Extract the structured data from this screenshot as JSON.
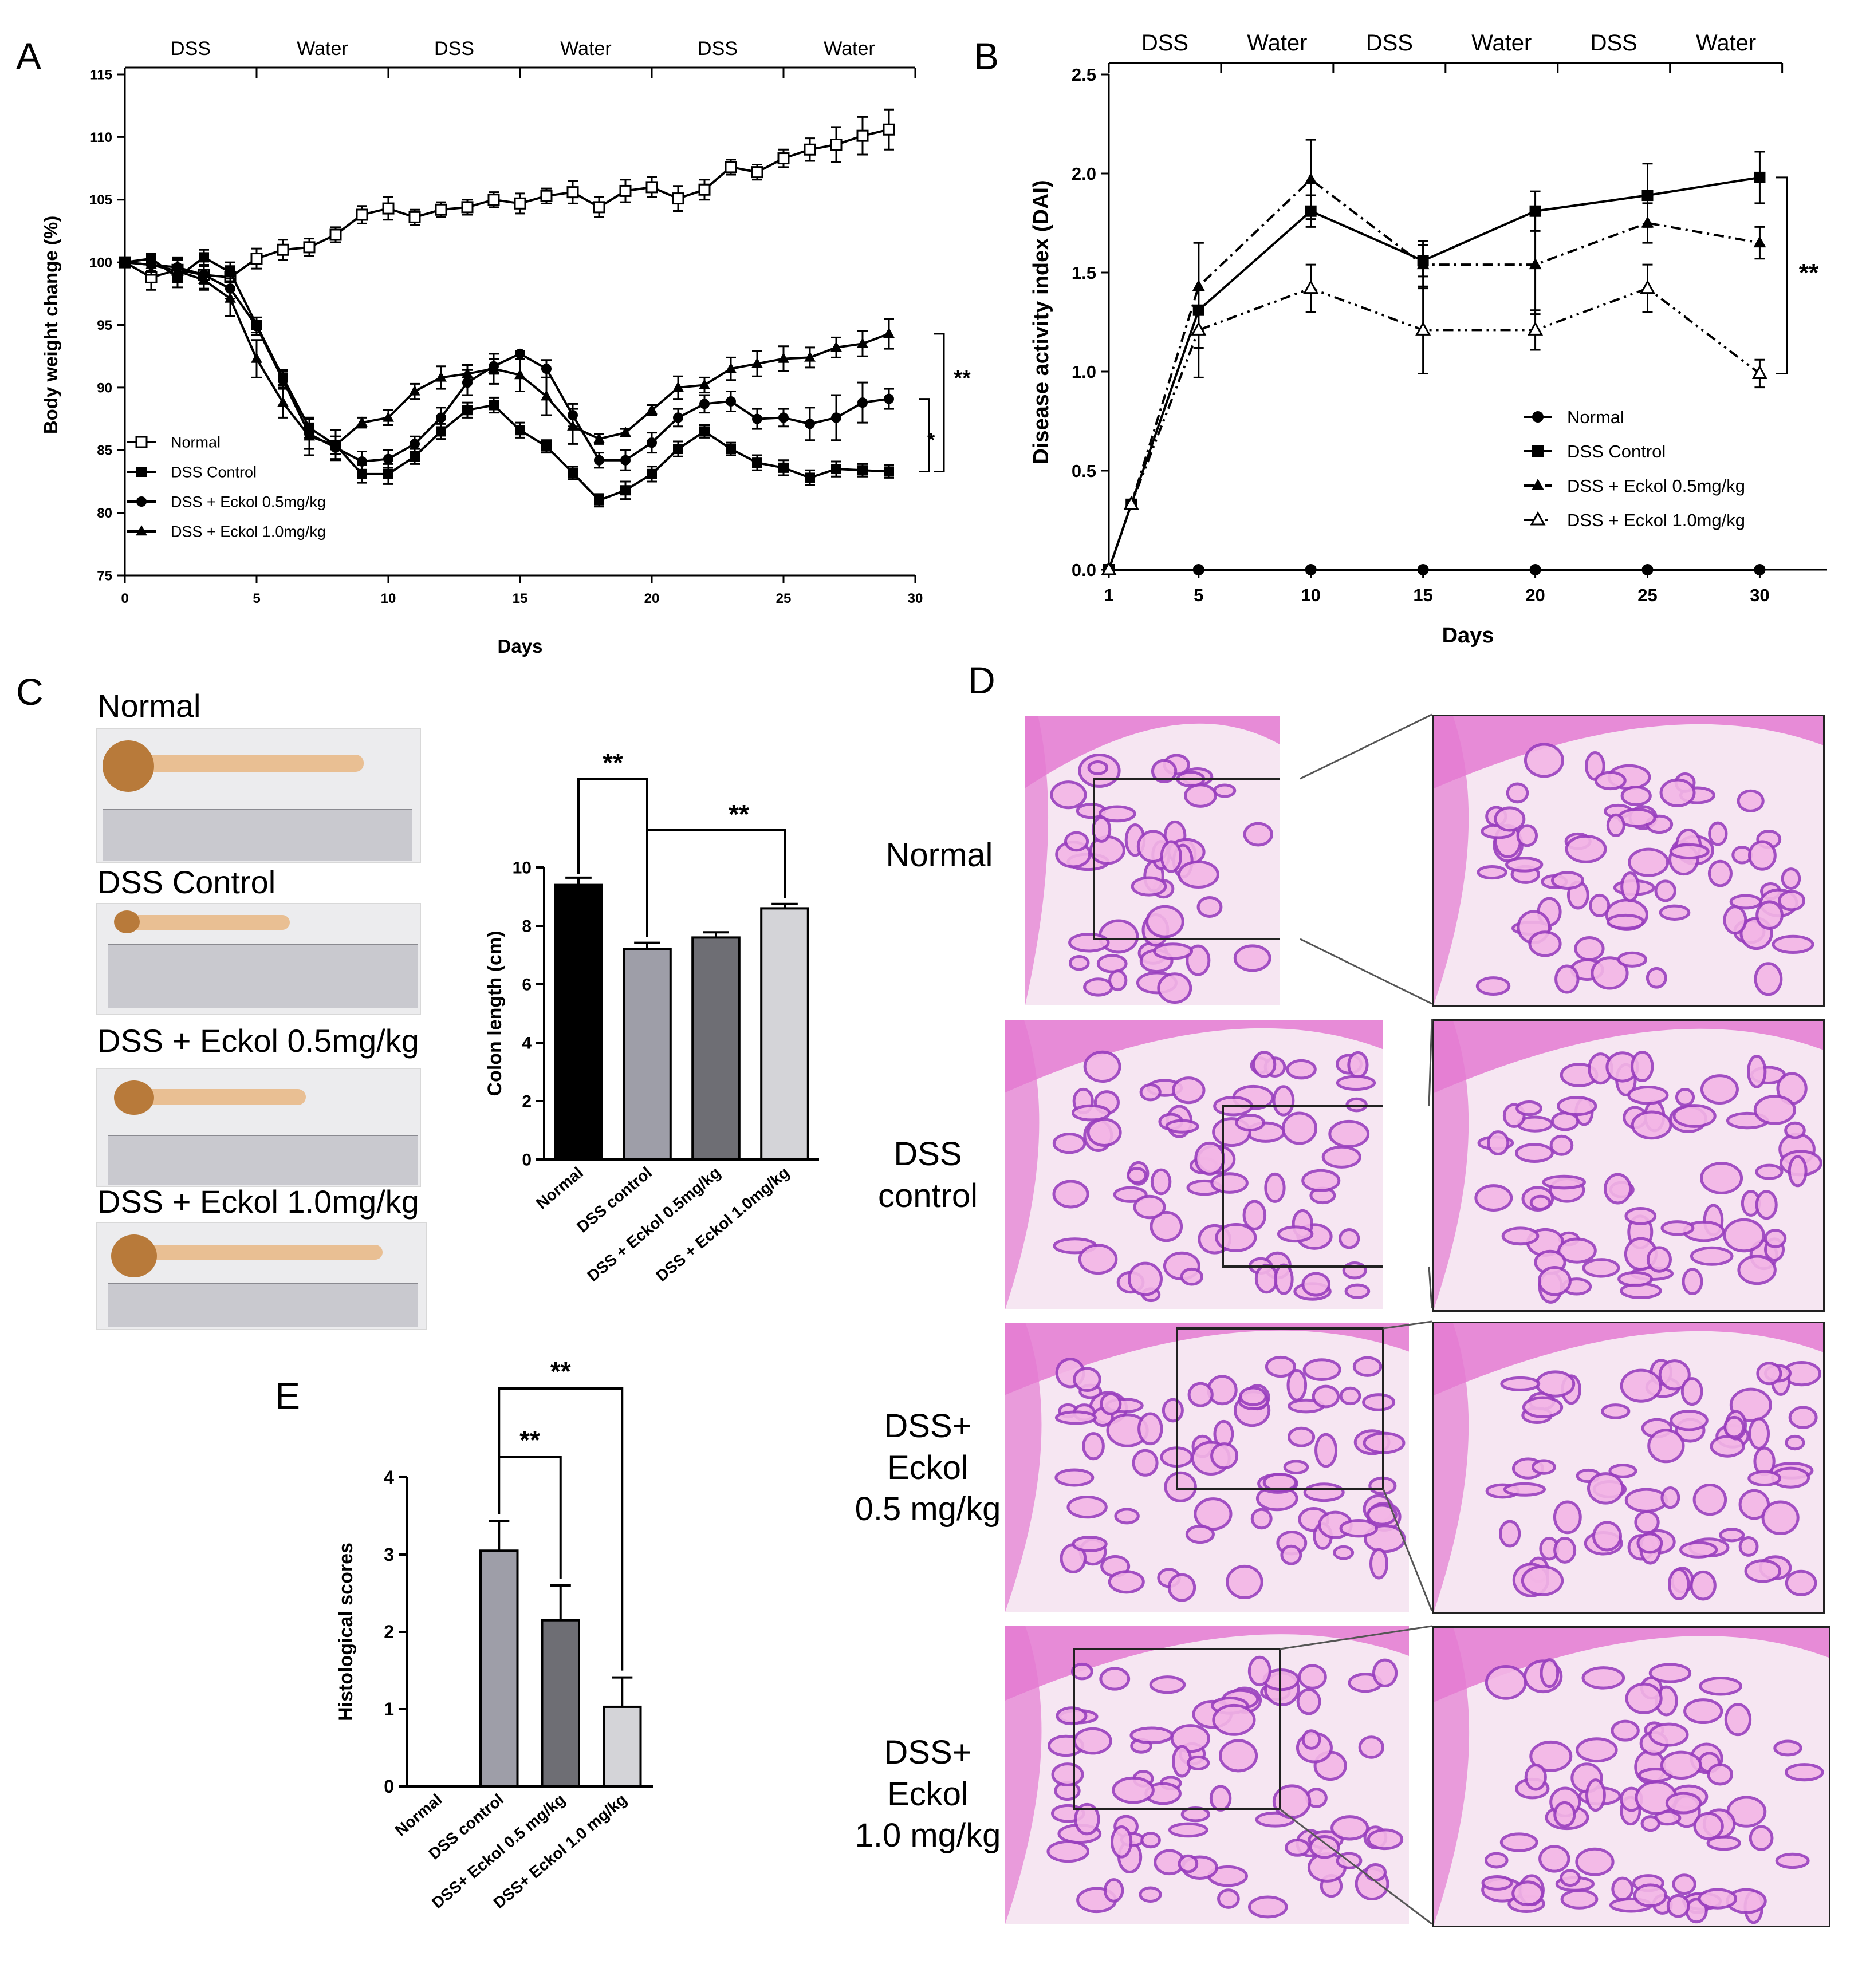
{
  "panels": {
    "A": "A",
    "B": "B",
    "C": "C",
    "D": "D",
    "E": "E"
  },
  "chart_data": [
    {
      "id": "A",
      "type": "line",
      "xlabel": "Days",
      "ylabel": "Body weight change (%)",
      "xlim": [
        0,
        30
      ],
      "ylim": [
        75,
        115
      ],
      "xticks": [
        "0",
        "5",
        "10",
        "15",
        "20",
        "25",
        "30"
      ],
      "yticks": [
        "75",
        "80",
        "85",
        "90",
        "95",
        "100",
        "105",
        "110",
        "115"
      ],
      "phases": [
        "DSS",
        "Water",
        "DSS",
        "Water",
        "DSS",
        "Water"
      ],
      "phase_bounds": [
        0,
        5,
        10,
        15,
        20,
        25,
        30
      ],
      "legend": "bottom-left",
      "series": [
        {
          "name": "Normal",
          "marker": "open-square",
          "x": [
            0,
            1,
            2,
            3,
            4,
            5,
            6,
            7,
            8,
            9,
            10,
            11,
            12,
            13,
            14,
            15,
            16,
            17,
            18,
            19,
            20,
            21,
            22,
            23,
            24,
            25,
            26,
            27,
            28,
            29
          ],
          "y": [
            100,
            98.8,
            99.4,
            99,
            98.8,
            100.3,
            101,
            101.2,
            102.2,
            103.8,
            104.3,
            103.6,
            104.2,
            104.4,
            105,
            104.7,
            105.3,
            105.6,
            104.4,
            105.7,
            106,
            105.1,
            105.8,
            107.6,
            107.2,
            108.3,
            109,
            109.4,
            110.1,
            110.6
          ],
          "err": [
            0.3,
            1,
            1,
            1.1,
            0.9,
            0.8,
            0.8,
            0.7,
            0.6,
            0.7,
            0.9,
            0.6,
            0.6,
            0.6,
            0.6,
            0.8,
            0.6,
            0.9,
            0.8,
            0.9,
            0.8,
            1,
            0.8,
            0.6,
            0.6,
            0.7,
            0.9,
            1.4,
            1.5,
            1.6
          ]
        },
        {
          "name": "DSS Control",
          "marker": "filled-square",
          "x": [
            0,
            1,
            2,
            3,
            4,
            5,
            6,
            7,
            8,
            9,
            10,
            11,
            12,
            13,
            14,
            15,
            16,
            17,
            18,
            19,
            20,
            21,
            22,
            23,
            24,
            25,
            26,
            27,
            28,
            29
          ],
          "y": [
            100,
            100.3,
            98.8,
            100.4,
            99.2,
            95,
            90.8,
            86.8,
            85.4,
            83.1,
            83.1,
            84.5,
            86.5,
            88.2,
            88.6,
            86.6,
            85.3,
            83.2,
            81,
            81.8,
            83.1,
            85.1,
            86.5,
            85.1,
            84,
            83.6,
            82.8,
            83.5,
            83.4,
            83.3
          ],
          "err": [
            0.2,
            0.4,
            0.8,
            0.6,
            0.8,
            0.6,
            0.6,
            0.8,
            0.7,
            0.7,
            0.8,
            0.6,
            0.6,
            0.6,
            0.6,
            0.6,
            0.5,
            0.5,
            0.5,
            0.7,
            0.6,
            0.6,
            0.5,
            0.5,
            0.6,
            0.6,
            0.6,
            0.6,
            0.5,
            0.5
          ]
        },
        {
          "name": "DSS + Eckol 0.5mg/kg",
          "marker": "filled-circle",
          "x": [
            0,
            1,
            2,
            3,
            4,
            5,
            6,
            7,
            8,
            9,
            10,
            11,
            12,
            13,
            14,
            15,
            16,
            17,
            18,
            19,
            20,
            21,
            22,
            23,
            24,
            25,
            26,
            27,
            28,
            29
          ],
          "y": [
            100,
            99.8,
            99.6,
            99,
            97.9,
            94.9,
            90.6,
            86.3,
            85.2,
            84.1,
            84.3,
            85.5,
            87.6,
            90.4,
            91.7,
            92.7,
            91.5,
            87.8,
            84.2,
            84.2,
            85.6,
            87.6,
            88.7,
            88.9,
            87.5,
            87.6,
            87.1,
            87.6,
            88.8,
            89.1
          ],
          "err": [
            0.2,
            0.5,
            0.7,
            0.7,
            0.8,
            0.7,
            0.7,
            1.2,
            0.9,
            0.8,
            0.7,
            0.6,
            0.8,
            1,
            0.6,
            0.2,
            0.7,
            0.9,
            0.6,
            0.8,
            0.8,
            0.7,
            0.7,
            0.8,
            0.8,
            0.7,
            1.3,
            1.8,
            1.6,
            0.8
          ]
        },
        {
          "name": "DSS + Eckol 1.0mg/kg",
          "marker": "filled-triangle",
          "x": [
            0,
            1,
            2,
            3,
            4,
            5,
            6,
            7,
            8,
            9,
            10,
            11,
            12,
            13,
            14,
            15,
            16,
            17,
            18,
            19,
            20,
            21,
            22,
            23,
            24,
            25,
            26,
            27,
            28,
            29
          ],
          "y": [
            100,
            99.8,
            99.3,
            98.6,
            97.1,
            92.3,
            88.8,
            86.1,
            85.4,
            87.2,
            87.6,
            89.7,
            90.8,
            91.1,
            91.5,
            91,
            89.3,
            86.9,
            85.9,
            86.4,
            88.2,
            90,
            90.2,
            91.5,
            91.9,
            92.3,
            92.4,
            93.2,
            93.5,
            94.3
          ],
          "err": [
            0.2,
            0.8,
            0.9,
            0.8,
            1.4,
            1.5,
            1.2,
            1.5,
            1.2,
            0.4,
            0.6,
            0.6,
            0.9,
            0.7,
            1.2,
            1.3,
            1.5,
            1.4,
            0.4,
            0.3,
            0.4,
            0.9,
            0.6,
            0.9,
            1,
            1,
            0.8,
            0.8,
            1,
            1.2
          ]
        }
      ],
      "significance": [
        {
          "label": "**",
          "from_series": "DSS + Eckol 1.0mg/kg",
          "to_series": "DSS Control"
        },
        {
          "label": "*",
          "from_series": "DSS + Eckol 0.5mg/kg",
          "to_series": "DSS Control"
        }
      ]
    },
    {
      "id": "B",
      "type": "line",
      "xlabel": "Days",
      "ylabel": "Disease activity index (DAI)",
      "xlim": [
        1,
        33
      ],
      "ylim": [
        0,
        2.5
      ],
      "xticks": [
        "1",
        "5",
        "10",
        "15",
        "20",
        "25",
        "30"
      ],
      "yticks": [
        "0.0",
        "0.5",
        "1.0",
        "1.5",
        "2.0",
        "2.5"
      ],
      "phases": [
        "DSS",
        "Water",
        "DSS",
        "Water",
        "DSS",
        "Water"
      ],
      "phase_bounds": [
        1,
        6,
        11,
        16,
        21,
        26,
        31
      ],
      "legend": "bottom-right",
      "series": [
        {
          "name": "Normal",
          "marker": "filled-circle",
          "style": "solid",
          "x": [
            1,
            5,
            10,
            15,
            20,
            25,
            30
          ],
          "y": [
            0,
            0,
            0,
            0,
            0,
            0,
            0
          ],
          "err": [
            0,
            0,
            0,
            0,
            0,
            0,
            0
          ]
        },
        {
          "name": "DSS Control",
          "marker": "filled-square",
          "style": "solid",
          "x": [
            1,
            2,
            5,
            10,
            15,
            20,
            25,
            30
          ],
          "y": [
            0,
            0.33,
            1.31,
            1.81,
            1.56,
            1.81,
            1.89,
            1.98
          ],
          "err": [
            0,
            0,
            0.34,
            0.08,
            0.08,
            0.1,
            0.16,
            0.13
          ]
        },
        {
          "name": "DSS + Eckol 0.5mg/kg",
          "marker": "filled-triangle",
          "style": "dashdot",
          "x": [
            1,
            2,
            5,
            10,
            15,
            20,
            25,
            30
          ],
          "y": [
            0,
            0.33,
            1.43,
            1.97,
            1.54,
            1.54,
            1.75,
            1.65
          ],
          "err": [
            0,
            0,
            0.22,
            0.2,
            0.12,
            0.25,
            0.1,
            0.08
          ]
        },
        {
          "name": "DSS + Eckol 1.0mg/kg",
          "marker": "open-triangle",
          "style": "dashdotdot",
          "x": [
            1,
            2,
            5,
            10,
            15,
            20,
            25,
            30
          ],
          "y": [
            0,
            0.33,
            1.21,
            1.42,
            1.21,
            1.21,
            1.42,
            0.99
          ],
          "err": [
            0,
            0,
            0.09,
            0.12,
            0.22,
            0.1,
            0.12,
            0.07
          ]
        }
      ],
      "significance": [
        {
          "label": "**"
        }
      ]
    },
    {
      "id": "C",
      "type": "bar",
      "ylabel": "Colon length (cm)",
      "ylim": [
        0,
        10
      ],
      "yticks": [
        "0",
        "2",
        "4",
        "6",
        "8",
        "10"
      ],
      "categories": [
        "Normal",
        "DSS control",
        "DSS + Eckol 0.5mg/kg",
        "DSS + Eckol 1.0mg/kg"
      ],
      "values": [
        9.4,
        7.2,
        7.6,
        8.6
      ],
      "err": [
        0.25,
        0.22,
        0.18,
        0.15
      ],
      "colors": [
        "#000000",
        "#9e9ea8",
        "#6e6e74",
        "#d4d4d8"
      ],
      "significance": [
        {
          "label": "**",
          "from": 0,
          "to": 1
        },
        {
          "label": "**",
          "from": 1,
          "to": 3
        }
      ]
    },
    {
      "id": "E",
      "type": "bar",
      "ylabel": "Histological scores",
      "ylim": [
        0,
        4
      ],
      "yticks": [
        "0",
        "1",
        "2",
        "3",
        "4"
      ],
      "categories": [
        "Normal",
        "DSS control",
        "DSS+ Eckol 0.5 mg/kg",
        "DSS+ Eckol 1.0 mg/kg"
      ],
      "values": [
        0,
        3.05,
        2.15,
        1.03
      ],
      "err": [
        0,
        0.38,
        0.45,
        0.38
      ],
      "colors": [
        "#000000",
        "#9e9ea8",
        "#6e6e74",
        "#d4d4d8"
      ],
      "significance": [
        {
          "label": "**",
          "from": 1,
          "to": 2
        },
        {
          "label": "**",
          "from": 1,
          "to": 3
        }
      ]
    }
  ],
  "panelC_photos": {
    "labels": [
      "Normal",
      "DSS Control",
      "DSS + Eckol 0.5mg/kg",
      "DSS + Eckol 1.0mg/kg"
    ],
    "colon_length_fraction": [
      0.76,
      0.53,
      0.58,
      0.82
    ]
  },
  "panelD_histology": {
    "groups": [
      "Normal",
      "DSS\ncontrol",
      "DSS+\nEckol\n0.5 mg/kg",
      "DSS+\nEckol\n1.0 mg/kg"
    ],
    "stain_colors": [
      "#e47ad2",
      "#f3b6e6",
      "#9a3fbf"
    ]
  }
}
